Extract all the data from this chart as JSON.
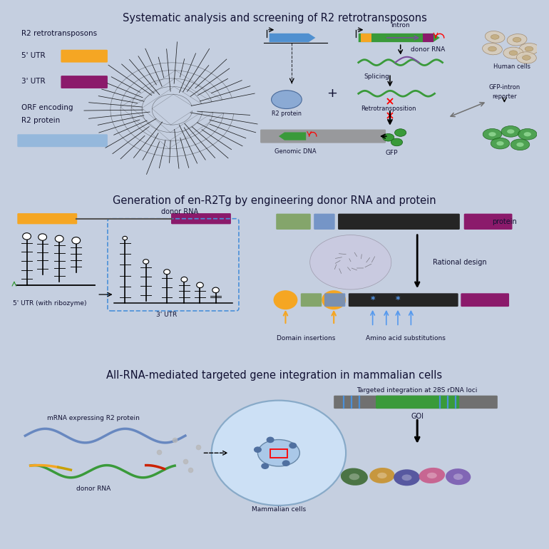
{
  "bg_outer": "#c5cfe0",
  "bg_panel": "#daeaf8",
  "bg_header": "#aab8d0",
  "title1": "Systematic analysis and screening of R2 retrotransposons",
  "title2": "Generation of en-R2Tg by engineering donor RNA and protein",
  "title3": "All-RNA-mediated targeted gene integration in mammalian cells",
  "color_5utr": "#F5A623",
  "color_3utr": "#8B1A6B",
  "color_orf": "#8DB4DC",
  "color_green": "#3a9a3a",
  "color_blue_arrow": "#5090d0",
  "color_purple": "#7B4F9E",
  "color_gray_cell": "#d8ccb8",
  "color_blue_particle": "#6080b0"
}
